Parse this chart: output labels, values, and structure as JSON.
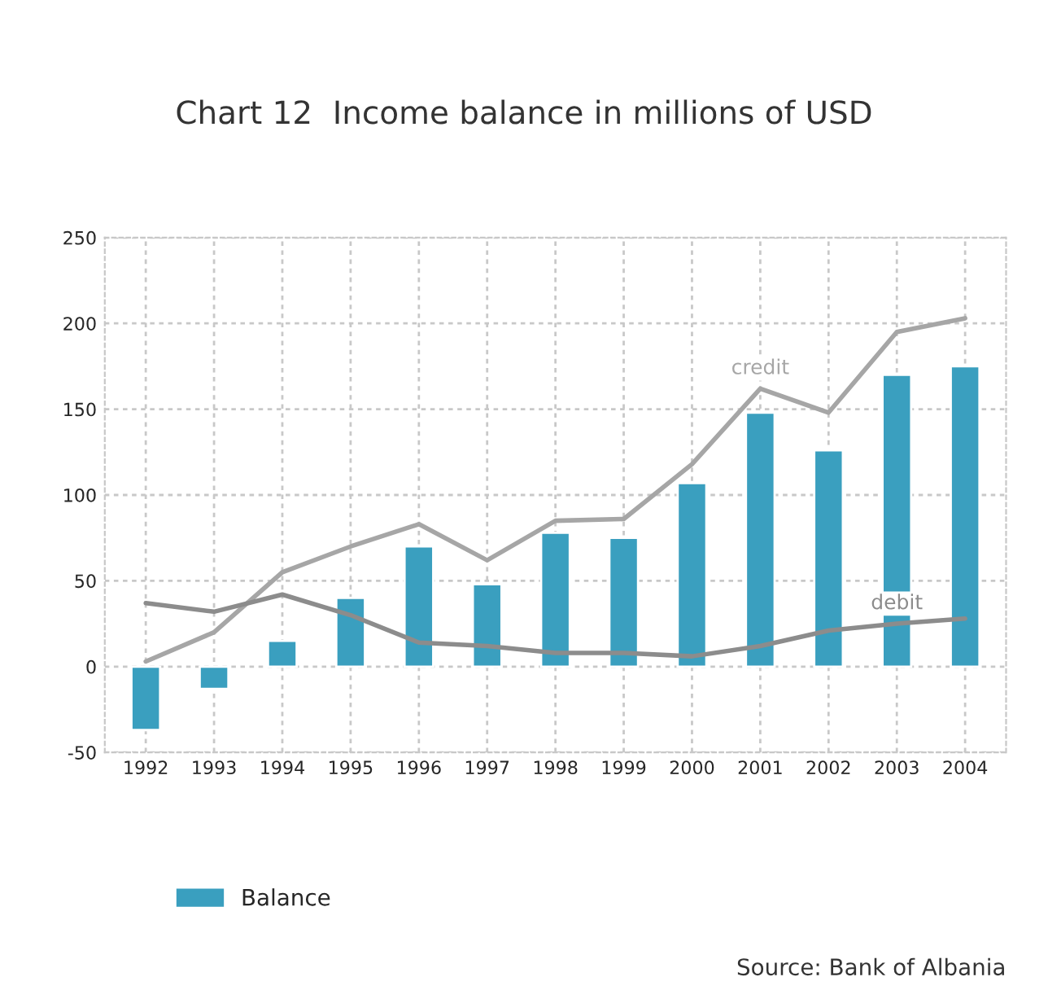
{
  "chart_data": {
    "type": "bar",
    "title": "Chart 12  Income balance in millions of USD",
    "categories": [
      "1992",
      "1993",
      "1994",
      "1995",
      "1996",
      "1997",
      "1998",
      "1999",
      "2000",
      "2001",
      "2002",
      "2003",
      "2004"
    ],
    "series": [
      {
        "name": "Balance",
        "color": "#3a9fbf",
        "values": [
          -37,
          -13,
          15,
          40,
          70,
          48,
          78,
          75,
          107,
          148,
          126,
          170,
          175
        ]
      },
      {
        "name": "credit",
        "type": "line",
        "color": "#a6a6a6",
        "values": [
          3,
          20,
          55,
          70,
          83,
          62,
          85,
          86,
          118,
          162,
          148,
          195,
          203
        ]
      },
      {
        "name": "debit",
        "type": "line",
        "color": "#8c8c8c",
        "values": [
          37,
          32,
          42,
          30,
          14,
          12,
          8,
          8,
          6,
          12,
          21,
          25,
          28
        ]
      }
    ],
    "ylim": [
      -50,
      250
    ],
    "yticks": [
      -50,
      0,
      50,
      100,
      150,
      200,
      250
    ],
    "grid": true,
    "legend": "bottom left",
    "line_style": "solid",
    "marker": "none",
    "annotations": [
      "Source: Bank of Albania"
    ]
  }
}
